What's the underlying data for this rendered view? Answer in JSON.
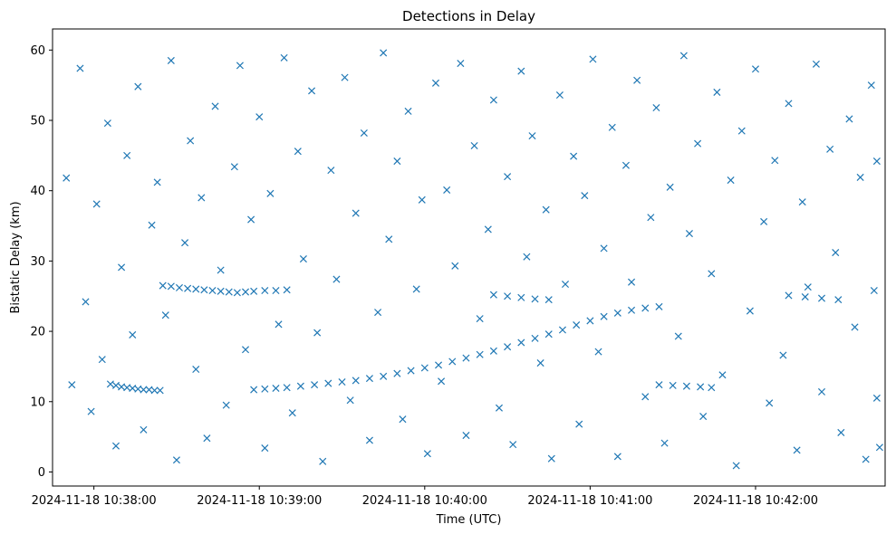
{
  "chart_data": {
    "type": "scatter",
    "title": "Detections in Delay",
    "xlabel": "Time (UTC)",
    "ylabel": "Bistatic Delay (km)",
    "x_unit": "time",
    "xlim": [
      "2024-11-18 10:37:45",
      "2024-11-18 10:42:47"
    ],
    "ylim": [
      -2,
      63
    ],
    "x_ticks": [
      "2024-11-18 10:38:00",
      "2024-11-18 10:39:00",
      "2024-11-18 10:40:00",
      "2024-11-18 10:41:00",
      "2024-11-18 10:42:00"
    ],
    "y_ticks": [
      0,
      10,
      20,
      30,
      40,
      50,
      60
    ],
    "grid": false,
    "marker": "x",
    "color": "#1f77b4",
    "series": [
      {
        "points": [
          [
            "10:38:06",
            12.5
          ],
          [
            "10:38:08",
            12.3
          ],
          [
            "10:38:10",
            12.1
          ],
          [
            "10:38:12",
            12.0
          ],
          [
            "10:38:14",
            11.9
          ],
          [
            "10:38:16",
            11.8
          ],
          [
            "10:38:18",
            11.7
          ],
          [
            "10:38:20",
            11.7
          ],
          [
            "10:38:22",
            11.6
          ],
          [
            "10:38:24",
            11.6
          ],
          [
            "10:38:25",
            26.5
          ],
          [
            "10:38:28",
            26.4
          ],
          [
            "10:38:31",
            26.2
          ],
          [
            "10:38:34",
            26.1
          ],
          [
            "10:38:37",
            26.0
          ],
          [
            "10:38:40",
            25.9
          ],
          [
            "10:38:43",
            25.8
          ],
          [
            "10:38:46",
            25.7
          ],
          [
            "10:38:49",
            25.6
          ],
          [
            "10:38:52",
            25.5
          ],
          [
            "10:38:55",
            25.6
          ],
          [
            "10:38:58",
            25.7
          ],
          [
            "10:39:02",
            25.8
          ],
          [
            "10:39:06",
            25.8
          ],
          [
            "10:39:10",
            25.9
          ],
          [
            "10:38:58",
            11.7
          ],
          [
            "10:39:02",
            11.8
          ],
          [
            "10:39:06",
            11.9
          ],
          [
            "10:39:10",
            12.0
          ],
          [
            "10:39:15",
            12.2
          ],
          [
            "10:39:20",
            12.4
          ],
          [
            "10:39:25",
            12.6
          ],
          [
            "10:39:30",
            12.8
          ],
          [
            "10:39:35",
            13.0
          ],
          [
            "10:39:40",
            13.3
          ],
          [
            "10:39:45",
            13.6
          ],
          [
            "10:39:50",
            14.0
          ],
          [
            "10:39:55",
            14.4
          ],
          [
            "10:40:00",
            14.8
          ],
          [
            "10:40:05",
            15.2
          ],
          [
            "10:40:10",
            15.7
          ],
          [
            "10:40:15",
            16.2
          ],
          [
            "10:40:20",
            16.7
          ],
          [
            "10:40:25",
            17.2
          ],
          [
            "10:40:30",
            17.8
          ],
          [
            "10:40:35",
            18.4
          ],
          [
            "10:40:40",
            19.0
          ],
          [
            "10:40:45",
            19.6
          ],
          [
            "10:40:50",
            20.2
          ],
          [
            "10:40:55",
            20.9
          ],
          [
            "10:41:00",
            21.5
          ],
          [
            "10:41:05",
            22.1
          ],
          [
            "10:41:10",
            22.6
          ],
          [
            "10:41:15",
            23.0
          ],
          [
            "10:41:20",
            23.3
          ],
          [
            "10:41:25",
            23.5
          ],
          [
            "10:40:25",
            25.2
          ],
          [
            "10:40:30",
            25.0
          ],
          [
            "10:40:35",
            24.8
          ],
          [
            "10:40:40",
            24.6
          ],
          [
            "10:40:45",
            24.5
          ],
          [
            "10:41:25",
            12.4
          ],
          [
            "10:41:30",
            12.3
          ],
          [
            "10:41:35",
            12.2
          ],
          [
            "10:41:40",
            12.1
          ],
          [
            "10:41:44",
            12.0
          ],
          [
            "10:42:12",
            25.1
          ],
          [
            "10:42:18",
            24.9
          ],
          [
            "10:42:24",
            24.7
          ],
          [
            "10:42:30",
            24.5
          ],
          [
            "10:37:50",
            41.8
          ],
          [
            "10:37:52",
            12.4
          ],
          [
            "10:37:55",
            57.4
          ],
          [
            "10:37:57",
            24.2
          ],
          [
            "10:37:59",
            8.6
          ],
          [
            "10:38:01",
            38.1
          ],
          [
            "10:38:03",
            16.0
          ],
          [
            "10:38:05",
            49.6
          ],
          [
            "10:38:08",
            3.7
          ],
          [
            "10:38:10",
            29.1
          ],
          [
            "10:38:12",
            45.0
          ],
          [
            "10:38:14",
            19.5
          ],
          [
            "10:38:16",
            54.8
          ],
          [
            "10:38:18",
            6.0
          ],
          [
            "10:38:21",
            35.1
          ],
          [
            "10:38:23",
            41.2
          ],
          [
            "10:38:26",
            22.3
          ],
          [
            "10:38:28",
            58.5
          ],
          [
            "10:38:30",
            1.7
          ],
          [
            "10:38:33",
            32.6
          ],
          [
            "10:38:35",
            47.1
          ],
          [
            "10:38:37",
            14.6
          ],
          [
            "10:38:39",
            39.0
          ],
          [
            "10:38:41",
            4.8
          ],
          [
            "10:38:44",
            52.0
          ],
          [
            "10:38:46",
            28.7
          ],
          [
            "10:38:48",
            9.5
          ],
          [
            "10:38:51",
            43.4
          ],
          [
            "10:38:53",
            57.8
          ],
          [
            "10:38:55",
            17.4
          ],
          [
            "10:38:57",
            35.9
          ],
          [
            "10:39:00",
            50.5
          ],
          [
            "10:39:02",
            3.4
          ],
          [
            "10:39:04",
            39.6
          ],
          [
            "10:39:07",
            21.0
          ],
          [
            "10:39:09",
            58.9
          ],
          [
            "10:39:12",
            8.4
          ],
          [
            "10:39:14",
            45.6
          ],
          [
            "10:39:16",
            30.3
          ],
          [
            "10:39:19",
            54.2
          ],
          [
            "10:39:21",
            19.8
          ],
          [
            "10:39:23",
            1.5
          ],
          [
            "10:39:26",
            42.9
          ],
          [
            "10:39:28",
            27.4
          ],
          [
            "10:39:31",
            56.1
          ],
          [
            "10:39:33",
            10.2
          ],
          [
            "10:39:35",
            36.8
          ],
          [
            "10:39:38",
            48.2
          ],
          [
            "10:39:40",
            4.5
          ],
          [
            "10:39:43",
            22.7
          ],
          [
            "10:39:45",
            59.6
          ],
          [
            "10:39:47",
            33.1
          ],
          [
            "10:39:50",
            44.2
          ],
          [
            "10:39:52",
            7.5
          ],
          [
            "10:39:54",
            51.3
          ],
          [
            "10:39:57",
            26.0
          ],
          [
            "10:39:59",
            38.7
          ],
          [
            "10:40:01",
            2.6
          ],
          [
            "10:40:04",
            55.3
          ],
          [
            "10:40:06",
            12.9
          ],
          [
            "10:40:08",
            40.1
          ],
          [
            "10:40:11",
            29.3
          ],
          [
            "10:40:13",
            58.1
          ],
          [
            "10:40:15",
            5.2
          ],
          [
            "10:40:18",
            46.4
          ],
          [
            "10:40:20",
            21.8
          ],
          [
            "10:40:23",
            34.5
          ],
          [
            "10:40:25",
            52.9
          ],
          [
            "10:40:27",
            9.1
          ],
          [
            "10:40:30",
            42.0
          ],
          [
            "10:40:32",
            3.9
          ],
          [
            "10:40:35",
            57.0
          ],
          [
            "10:40:37",
            30.6
          ],
          [
            "10:40:39",
            47.8
          ],
          [
            "10:40:42",
            15.5
          ],
          [
            "10:40:44",
            37.3
          ],
          [
            "10:40:46",
            1.9
          ],
          [
            "10:40:49",
            53.6
          ],
          [
            "10:40:51",
            26.7
          ],
          [
            "10:40:54",
            44.9
          ],
          [
            "10:40:56",
            6.8
          ],
          [
            "10:40:58",
            39.3
          ],
          [
            "10:41:01",
            58.7
          ],
          [
            "10:41:03",
            17.1
          ],
          [
            "10:41:05",
            31.8
          ],
          [
            "10:41:08",
            49.0
          ],
          [
            "10:41:10",
            2.2
          ],
          [
            "10:41:13",
            43.6
          ],
          [
            "10:41:15",
            27.0
          ],
          [
            "10:41:17",
            55.7
          ],
          [
            "10:41:20",
            10.7
          ],
          [
            "10:41:22",
            36.2
          ],
          [
            "10:41:24",
            51.8
          ],
          [
            "10:41:27",
            4.1
          ],
          [
            "10:41:29",
            40.5
          ],
          [
            "10:41:32",
            19.3
          ],
          [
            "10:41:34",
            59.2
          ],
          [
            "10:41:36",
            33.9
          ],
          [
            "10:41:39",
            46.7
          ],
          [
            "10:41:41",
            7.9
          ],
          [
            "10:41:44",
            28.2
          ],
          [
            "10:41:46",
            54.0
          ],
          [
            "10:41:48",
            13.8
          ],
          [
            "10:41:51",
            41.5
          ],
          [
            "10:41:53",
            0.9
          ],
          [
            "10:41:55",
            48.5
          ],
          [
            "10:41:58",
            22.9
          ],
          [
            "10:42:00",
            57.3
          ],
          [
            "10:42:03",
            35.6
          ],
          [
            "10:42:05",
            9.8
          ],
          [
            "10:42:07",
            44.3
          ],
          [
            "10:42:10",
            16.6
          ],
          [
            "10:42:12",
            52.4
          ],
          [
            "10:42:15",
            3.1
          ],
          [
            "10:42:17",
            38.4
          ],
          [
            "10:42:19",
            26.3
          ],
          [
            "10:42:22",
            58.0
          ],
          [
            "10:42:24",
            11.4
          ],
          [
            "10:42:27",
            45.9
          ],
          [
            "10:42:29",
            31.2
          ],
          [
            "10:42:31",
            5.6
          ],
          [
            "10:42:34",
            50.2
          ],
          [
            "10:42:36",
            20.6
          ],
          [
            "10:42:38",
            41.9
          ],
          [
            "10:42:40",
            1.8
          ],
          [
            "10:42:42",
            55.0
          ],
          [
            "10:42:43",
            25.8
          ],
          [
            "10:42:44",
            44.2
          ],
          [
            "10:42:44",
            10.5
          ],
          [
            "10:42:45",
            3.5
          ]
        ]
      }
    ]
  }
}
